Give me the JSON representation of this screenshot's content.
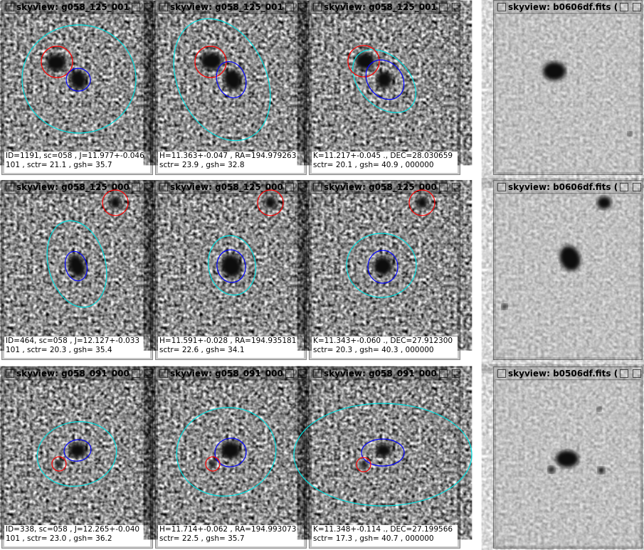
{
  "rows": [
    {
      "windows": [
        {
          "title": "skyview: g058_125_001",
          "caption": [
            "ID=1191, sc=058 , J=11.977+-0.046",
            "101 , sctr= 21.1 , gsh= 35.7"
          ]
        },
        {
          "title": "skyview: g058_125_001",
          "caption": [
            "H=11.363+-0.047 , RA=194.979263",
            "sctr= 23.9 , gsh= 32.8"
          ]
        },
        {
          "title": "skyview: g058_125_001",
          "caption": [
            "K=11.217+-0.045 ., DEC=28.030659",
            "sctr= 20.1 , gsh= 40.9 , 000000"
          ]
        }
      ],
      "reference": {
        "title": "skyview: b0606df.fits  ("
      }
    },
    {
      "windows": [
        {
          "title": "skyview: g058_125_000",
          "caption": [
            "ID=464, sc=058 , J=12.127+-0.033",
            "101 , sctr= 20.3 , gsh= 35.4"
          ]
        },
        {
          "title": "skyview: g058_125_000",
          "caption": [
            "H=11.591+-0.028 , RA=194.935181",
            "sctr= 22.6 , gsh= 34.1"
          ]
        },
        {
          "title": "skyview: g058_125_000",
          "caption": [
            "K=11.343+-0.060 ., DEC=27.912300",
            "sctr= 20.3 , gsh= 40.3 , 000000"
          ]
        }
      ],
      "reference": {
        "title": "skyview: b0606df.fits  ("
      }
    },
    {
      "windows": [
        {
          "title": "skyview: g058_091_000",
          "caption": [
            "ID=338, sc=058 , J=12.265+-0.040",
            "101 , sctr= 23.0 , gsh= 36.2"
          ]
        },
        {
          "title": "skyview: g058_091_000",
          "caption": [
            "H=11.714+-0.062 , RA=194.993073",
            "sctr= 22.5 , gsh= 35.7"
          ]
        },
        {
          "title": "skyview: g058_091_000",
          "caption": [
            "K=11.348+-0.114 ., DEC=27.199566",
            "sctr= 17.3 , gsh= 40.7 , 000000"
          ]
        }
      ],
      "reference": {
        "title": "skyview: b0506df.fits  ("
      }
    }
  ]
}
